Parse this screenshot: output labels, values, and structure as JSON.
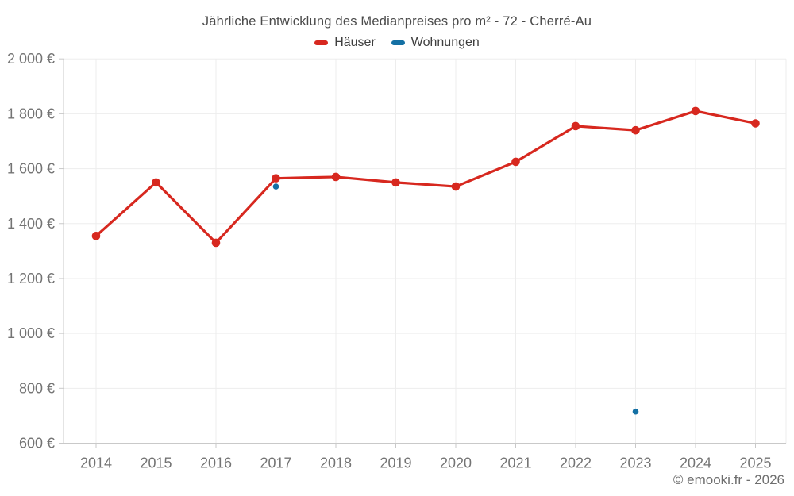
{
  "page": {
    "copyright": "© emooki.fr - 2026"
  },
  "chart_data": {
    "type": "line",
    "title": "Jährliche Entwicklung des Medianpreises pro m² - 72 - Cherré-Au",
    "categories": [
      "2014",
      "2015",
      "2016",
      "2017",
      "2018",
      "2019",
      "2020",
      "2021",
      "2022",
      "2023",
      "2024",
      "2025"
    ],
    "series": [
      {
        "id": "haeuser",
        "name": "Häuser",
        "color": "#d7281f",
        "marker_radius": 5.3,
        "line_width": 3.2,
        "values": [
          1355,
          1550,
          1330,
          1565,
          1570,
          1550,
          1535,
          1625,
          1755,
          1740,
          1810,
          1765
        ]
      },
      {
        "id": "wohnungen",
        "name": "Wohnungen",
        "color": "#1470a4",
        "marker_radius": 3.8,
        "line_width": 3.2,
        "values": [
          null,
          null,
          null,
          1535,
          null,
          null,
          null,
          null,
          null,
          715,
          null,
          null
        ]
      }
    ],
    "xlabel": "",
    "ylabel": "",
    "ylim": [
      600,
      2000
    ],
    "yticks": [
      {
        "value": 600,
        "label": "600 €"
      },
      {
        "value": 800,
        "label": "800 €"
      },
      {
        "value": 1000,
        "label": "1 000 €"
      },
      {
        "value": 1200,
        "label": "1 200 €"
      },
      {
        "value": 1400,
        "label": "1 400 €"
      },
      {
        "value": 1600,
        "label": "1 600 €"
      },
      {
        "value": 1800,
        "label": "1 800 €"
      },
      {
        "value": 2000,
        "label": "2 000 €"
      }
    ],
    "grid": true,
    "legend_position": "top",
    "colors": {
      "grid": "#ededed",
      "axis": "#c9c9c9",
      "tick_text": "#747474"
    }
  }
}
